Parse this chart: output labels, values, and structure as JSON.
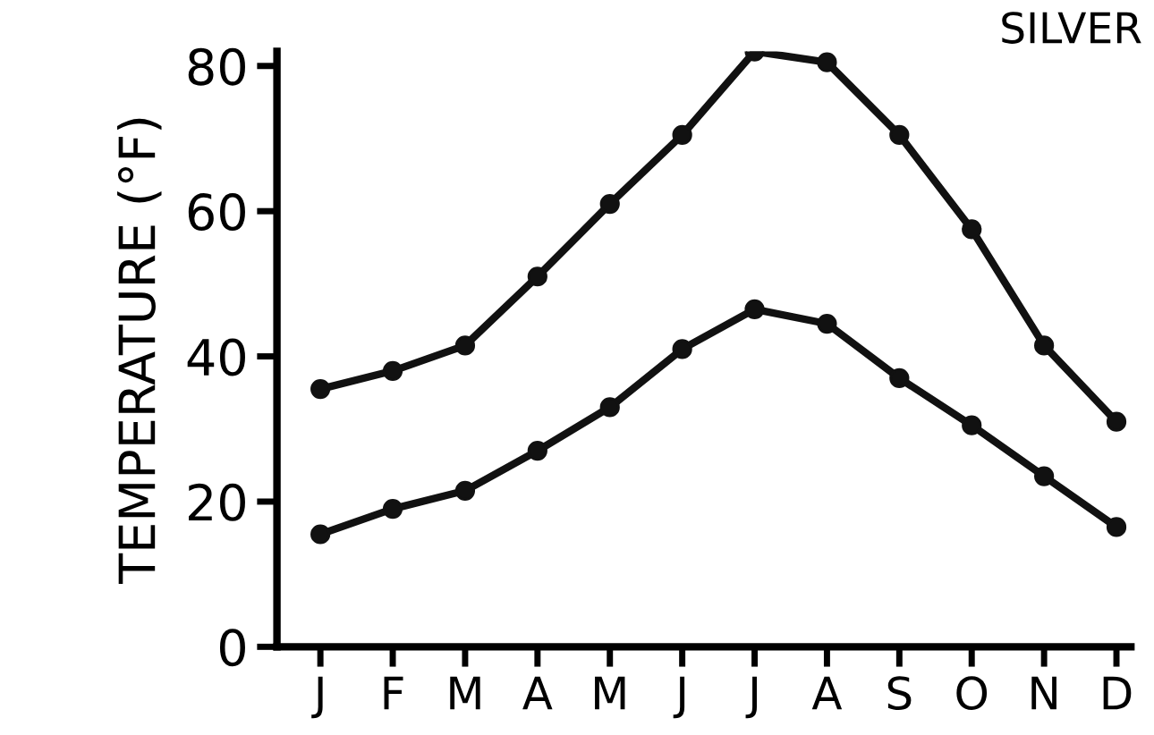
{
  "chart_data": {
    "type": "line",
    "title": "SILVER",
    "ylabel": "TEMPERATURE (°F)",
    "categories": [
      "J",
      "F",
      "M",
      "A",
      "M",
      "J",
      "J",
      "A",
      "S",
      "O",
      "N",
      "D"
    ],
    "series": [
      {
        "color": "#111111",
        "values": [
          35.5,
          38,
          41.5,
          51,
          61,
          70.5,
          82,
          80.5,
          70.5,
          57.5,
          41.5,
          31
        ]
      },
      {
        "color": "#111111",
        "values": [
          15.5,
          19,
          21.5,
          27,
          33,
          41,
          46.5,
          44.5,
          37,
          30.5,
          23.5,
          16.5
        ]
      }
    ],
    "ylim": [
      0,
      82
    ],
    "yticks": [
      0,
      20,
      40,
      60,
      80
    ],
    "marker": "circle",
    "line_style": "solid",
    "grid": false,
    "legend": false
  }
}
